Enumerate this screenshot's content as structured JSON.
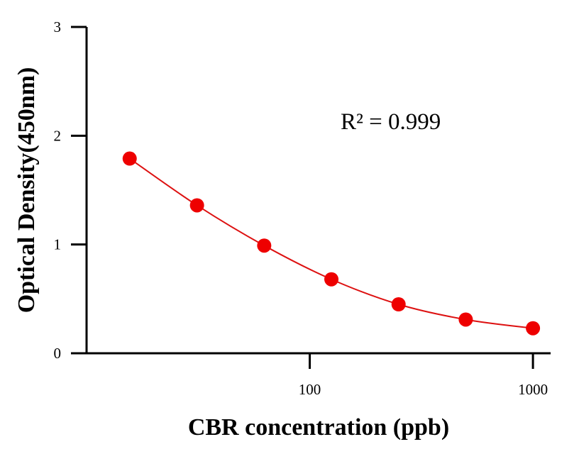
{
  "chart_data": {
    "type": "scatter",
    "xlabel": "CBR concentration (ppb)",
    "ylabel": "Optical Density(450nm)",
    "x_scale": "log",
    "xlim": [
      10,
      1200
    ],
    "ylim": [
      0,
      3
    ],
    "x_ticks": [
      {
        "value": 100,
        "label": "100"
      },
      {
        "value": 1000,
        "label": "1000"
      }
    ],
    "y_ticks": [
      {
        "value": 0,
        "label": "0"
      },
      {
        "value": 1,
        "label": "1"
      },
      {
        "value": 2,
        "label": "2"
      },
      {
        "value": 3,
        "label": "3"
      }
    ],
    "grid": false,
    "annotation": "R² = 0.999",
    "series": [
      {
        "color": "#ee0000",
        "line_color": "#dd1111",
        "x": [
          15.6,
          31.25,
          62.5,
          125,
          250,
          500,
          1000
        ],
        "y": [
          1.79,
          1.36,
          0.99,
          0.68,
          0.45,
          0.31,
          0.23
        ]
      }
    ]
  }
}
